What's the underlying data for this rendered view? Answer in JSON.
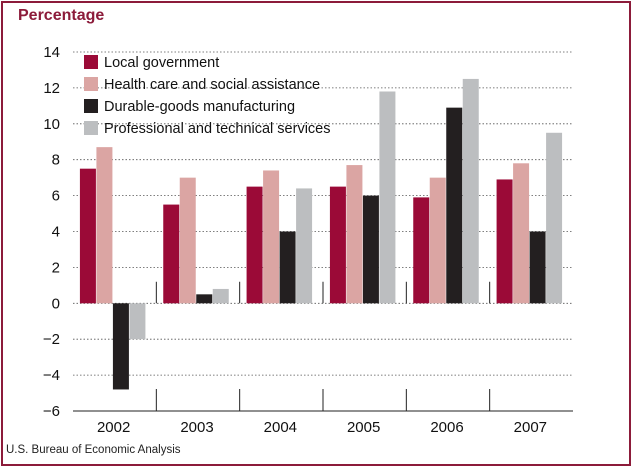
{
  "chart_data": {
    "type": "bar",
    "title": "",
    "ylabel": "Percentage",
    "xlabel": "",
    "source": "U.S. Bureau of Economic Analysis",
    "categories": [
      "2002",
      "2003",
      "2004",
      "2005",
      "2006",
      "2007"
    ],
    "ylim": [
      -6,
      14
    ],
    "yticks": [
      14,
      12,
      10,
      8,
      6,
      4,
      2,
      0,
      -2,
      -4,
      -6
    ],
    "ytick_labels": [
      "14",
      "12",
      "10",
      "8",
      "6",
      "4",
      "2",
      "0",
      "−2",
      "−4",
      "−6"
    ],
    "grid": "horizontal dotted",
    "legend_position": "top-left",
    "series": [
      {
        "name": "Local government",
        "color": "#9b0a37",
        "values": [
          7.5,
          5.5,
          6.5,
          6.5,
          5.9,
          6.9
        ]
      },
      {
        "name": "Health care and social assistance",
        "color": "#dba5a3",
        "values": [
          8.7,
          7.0,
          7.4,
          7.7,
          7.0,
          7.8
        ]
      },
      {
        "name": "Durable-goods manufacturing",
        "color": "#231f20",
        "values": [
          -4.8,
          0.5,
          4.0,
          6.0,
          10.9,
          4.0
        ]
      },
      {
        "name": "Professional and technical services",
        "color": "#bcbec0",
        "values": [
          -2.0,
          0.8,
          6.4,
          11.8,
          12.5,
          9.5
        ]
      }
    ]
  }
}
